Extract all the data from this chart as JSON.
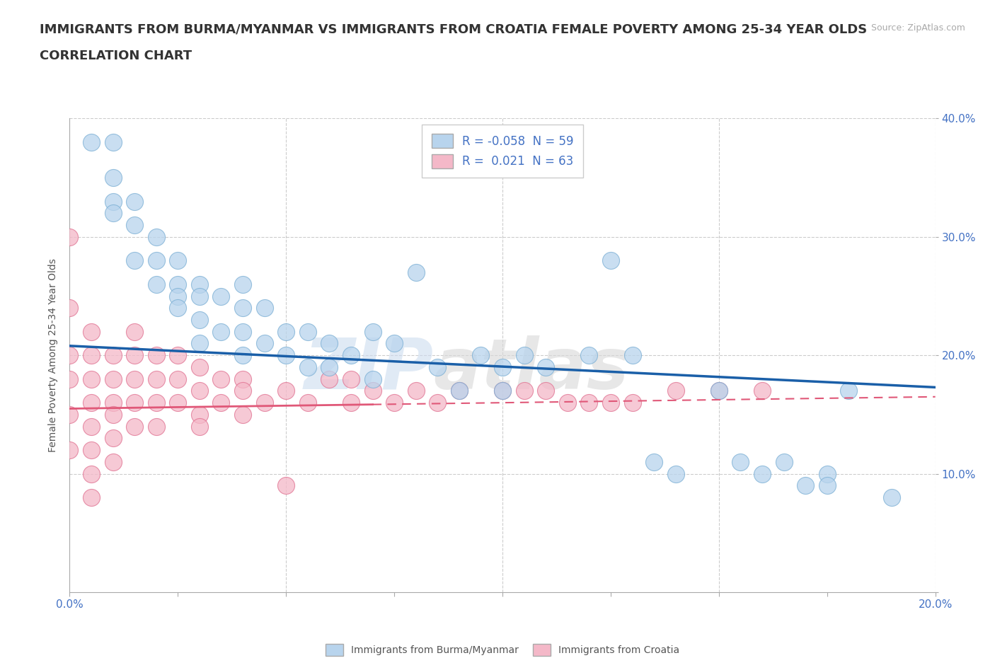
{
  "title_line1": "IMMIGRANTS FROM BURMA/MYANMAR VS IMMIGRANTS FROM CROATIA FEMALE POVERTY AMONG 25-34 YEAR OLDS",
  "title_line2": "CORRELATION CHART",
  "source": "Source: ZipAtlas.com",
  "ylabel": "Female Poverty Among 25-34 Year Olds",
  "xlim": [
    0.0,
    0.2
  ],
  "ylim": [
    0.0,
    0.4
  ],
  "xticks": [
    0.0,
    0.025,
    0.05,
    0.075,
    0.1,
    0.125,
    0.15,
    0.175,
    0.2
  ],
  "yticks": [
    0.0,
    0.1,
    0.2,
    0.3,
    0.4
  ],
  "watermark_text": "ZIP",
  "watermark_text2": "atlas",
  "grid_color": "#cccccc",
  "background_color": "#ffffff",
  "title_fontsize": 13,
  "axis_label_fontsize": 10,
  "tick_fontsize": 11,
  "legend_fontsize": 12,
  "series": [
    {
      "name": "Immigrants from Burma/Myanmar",
      "R": -0.058,
      "N": 59,
      "color": "#b8d4ed",
      "edge_color": "#7bafd4",
      "trend_color": "#1a5fa8",
      "trend_style": "solid",
      "trend_y0": 0.208,
      "trend_y1": 0.173,
      "x": [
        0.005,
        0.01,
        0.01,
        0.01,
        0.01,
        0.015,
        0.015,
        0.015,
        0.02,
        0.02,
        0.02,
        0.025,
        0.025,
        0.025,
        0.025,
        0.03,
        0.03,
        0.03,
        0.03,
        0.035,
        0.035,
        0.04,
        0.04,
        0.04,
        0.04,
        0.045,
        0.045,
        0.05,
        0.05,
        0.055,
        0.055,
        0.06,
        0.06,
        0.065,
        0.07,
        0.07,
        0.075,
        0.08,
        0.085,
        0.09,
        0.095,
        0.1,
        0.1,
        0.105,
        0.11,
        0.12,
        0.125,
        0.13,
        0.135,
        0.14,
        0.15,
        0.155,
        0.16,
        0.165,
        0.17,
        0.175,
        0.175,
        0.18,
        0.19
      ],
      "y": [
        0.38,
        0.38,
        0.35,
        0.33,
        0.32,
        0.33,
        0.31,
        0.28,
        0.3,
        0.28,
        0.26,
        0.28,
        0.26,
        0.25,
        0.24,
        0.26,
        0.25,
        0.23,
        0.21,
        0.25,
        0.22,
        0.26,
        0.24,
        0.22,
        0.2,
        0.24,
        0.21,
        0.22,
        0.2,
        0.22,
        0.19,
        0.21,
        0.19,
        0.2,
        0.22,
        0.18,
        0.21,
        0.27,
        0.19,
        0.17,
        0.2,
        0.19,
        0.17,
        0.2,
        0.19,
        0.2,
        0.28,
        0.2,
        0.11,
        0.1,
        0.17,
        0.11,
        0.1,
        0.11,
        0.09,
        0.1,
        0.09,
        0.17,
        0.08
      ]
    },
    {
      "name": "Immigrants from Croatia",
      "R": 0.021,
      "N": 63,
      "color": "#f4b8c8",
      "edge_color": "#e07090",
      "trend_color": "#e05878",
      "trend_style": "solid_to_dashed",
      "trend_y0": 0.155,
      "trend_y1": 0.165,
      "trend_solid_x_end": 0.07,
      "x": [
        0.0,
        0.0,
        0.0,
        0.0,
        0.0,
        0.0,
        0.005,
        0.005,
        0.005,
        0.005,
        0.005,
        0.005,
        0.005,
        0.005,
        0.01,
        0.01,
        0.01,
        0.01,
        0.01,
        0.01,
        0.015,
        0.015,
        0.015,
        0.015,
        0.015,
        0.02,
        0.02,
        0.02,
        0.02,
        0.025,
        0.025,
        0.025,
        0.03,
        0.03,
        0.03,
        0.03,
        0.035,
        0.035,
        0.04,
        0.04,
        0.04,
        0.045,
        0.05,
        0.05,
        0.055,
        0.06,
        0.065,
        0.065,
        0.07,
        0.075,
        0.08,
        0.085,
        0.09,
        0.1,
        0.105,
        0.11,
        0.115,
        0.12,
        0.125,
        0.13,
        0.14,
        0.15,
        0.16
      ],
      "y": [
        0.3,
        0.24,
        0.2,
        0.18,
        0.15,
        0.12,
        0.22,
        0.2,
        0.18,
        0.16,
        0.14,
        0.12,
        0.1,
        0.08,
        0.2,
        0.18,
        0.16,
        0.15,
        0.13,
        0.11,
        0.22,
        0.2,
        0.18,
        0.16,
        0.14,
        0.2,
        0.18,
        0.16,
        0.14,
        0.2,
        0.18,
        0.16,
        0.19,
        0.17,
        0.15,
        0.14,
        0.18,
        0.16,
        0.18,
        0.17,
        0.15,
        0.16,
        0.17,
        0.09,
        0.16,
        0.18,
        0.18,
        0.16,
        0.17,
        0.16,
        0.17,
        0.16,
        0.17,
        0.17,
        0.17,
        0.17,
        0.16,
        0.16,
        0.16,
        0.16,
        0.17,
        0.17,
        0.17
      ]
    }
  ]
}
